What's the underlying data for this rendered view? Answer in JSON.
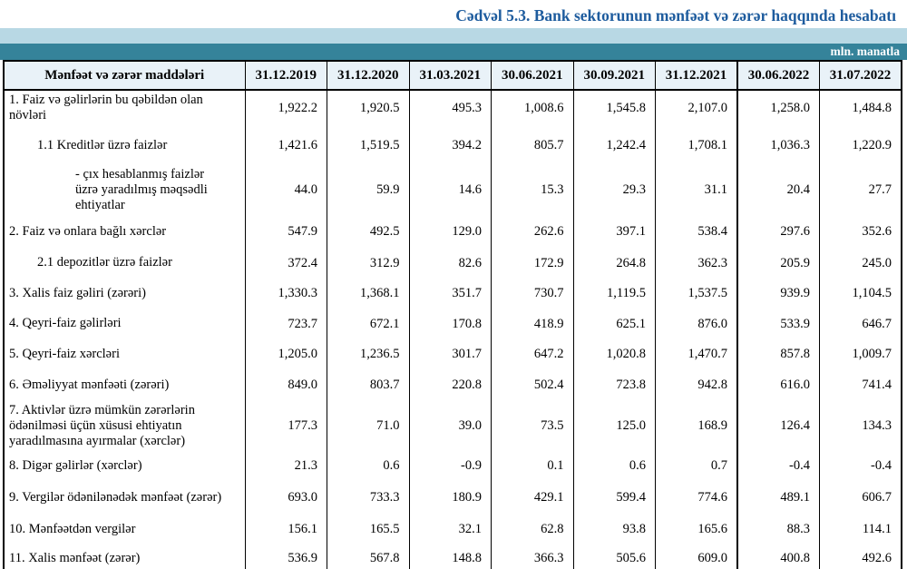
{
  "title": "Cədvəl 5.3. Bank sektorunun mənfəət və zərər haqqında hesabatı",
  "unit_label": "mln. manatla",
  "colors": {
    "accent_blue": "#1e5c9e",
    "teal_band": "#35839a",
    "light_band": "#b8d8e4",
    "header_bg": "#e9f2f8",
    "border": "#000000"
  },
  "table": {
    "header_label": "Mənfəət və zərər maddələri",
    "columns": [
      "31.12.2019",
      "31.12.2020",
      "31.03.2021",
      "30.06.2021",
      "30.09.2021",
      "31.12.2021",
      "30.06.2022",
      "31.07.2022"
    ],
    "year_break_column_index": 6,
    "rows": [
      {
        "label": "1. Faiz və gəlirlərin bu qəbildən olan növləri",
        "indent": 0,
        "values": [
          "1,922.2",
          "1,920.5",
          "495.3",
          "1,008.6",
          "1,545.8",
          "2,107.0",
          "1,258.0",
          "1,484.8"
        ]
      },
      {
        "label": "1.1 Kreditlər üzrə faizlər",
        "indent": 1,
        "values": [
          "1,421.6",
          "1,519.5",
          "394.2",
          "805.7",
          "1,242.4",
          "1,708.1",
          "1,036.3",
          "1,220.9"
        ]
      },
      {
        "label": "-  çıx hesablanmış faizlər üzrə yaradılmış məqsədli ehtiyatlar",
        "indent": 2,
        "values": [
          "44.0",
          "59.9",
          "14.6",
          "15.3",
          "29.3",
          "31.1",
          "20.4",
          "27.7"
        ]
      },
      {
        "label": "2. Faiz və onlara bağlı xərclər",
        "indent": 0,
        "values": [
          "547.9",
          "492.5",
          "129.0",
          "262.6",
          "397.1",
          "538.4",
          "297.6",
          "352.6"
        ]
      },
      {
        "label": "2.1 depozitlər üzrə faizlər",
        "indent": 1,
        "values": [
          "372.4",
          "312.9",
          "82.6",
          "172.9",
          "264.8",
          "362.3",
          "205.9",
          "245.0"
        ]
      },
      {
        "label": "3. Xalis faiz gəliri (zərəri)",
        "indent": 0,
        "values": [
          "1,330.3",
          "1,368.1",
          "351.7",
          "730.7",
          "1,119.5",
          "1,537.5",
          "939.9",
          "1,104.5"
        ]
      },
      {
        "label": "4. Qeyri-faiz gəlirləri",
        "indent": 0,
        "values": [
          "723.7",
          "672.1",
          "170.8",
          "418.9",
          "625.1",
          "876.0",
          "533.9",
          "646.7"
        ]
      },
      {
        "label": "5. Qeyri-faiz xərcləri",
        "indent": 0,
        "values": [
          "1,205.0",
          "1,236.5",
          "301.7",
          "647.2",
          "1,020.8",
          "1,470.7",
          "857.8",
          "1,009.7"
        ]
      },
      {
        "label": "6. Əməliyyat mənfəəti (zərəri)",
        "indent": 0,
        "values": [
          "849.0",
          "803.7",
          "220.8",
          "502.4",
          "723.8",
          "942.8",
          "616.0",
          "741.4"
        ]
      },
      {
        "label": "7. Aktivlər üzrə mümkün zərərlərin ödənilməsi üçün xüsusi ehtiyatın yaradılmasına ayırmalar (xərclər)",
        "indent": 0,
        "values": [
          "177.3",
          "71.0",
          "39.0",
          "73.5",
          "125.0",
          "168.9",
          "126.4",
          "134.3"
        ]
      },
      {
        "label": "8. Digər gəlirlər (xərclər)",
        "indent": 0,
        "values": [
          "21.3",
          "0.6",
          "-0.9",
          "0.1",
          "0.6",
          "0.7",
          "-0.4",
          "-0.4"
        ]
      },
      {
        "label": "9. Vergilər ödənilənədək mənfəət (zərər)",
        "indent": 0,
        "values": [
          "693.0",
          "733.3",
          "180.9",
          "429.1",
          "599.4",
          "774.6",
          "489.1",
          "606.7"
        ]
      },
      {
        "label": "10. Mənfəətdən vergilər",
        "indent": 0,
        "values": [
          "156.1",
          "165.5",
          "32.1",
          "62.8",
          "93.8",
          "165.6",
          "88.3",
          "114.1"
        ]
      },
      {
        "label": "11. Xalis mənfəət (zərər)",
        "indent": 0,
        "values": [
          "536.9",
          "567.8",
          "148.8",
          "366.3",
          "505.6",
          "609.0",
          "400.8",
          "492.6"
        ]
      }
    ]
  }
}
